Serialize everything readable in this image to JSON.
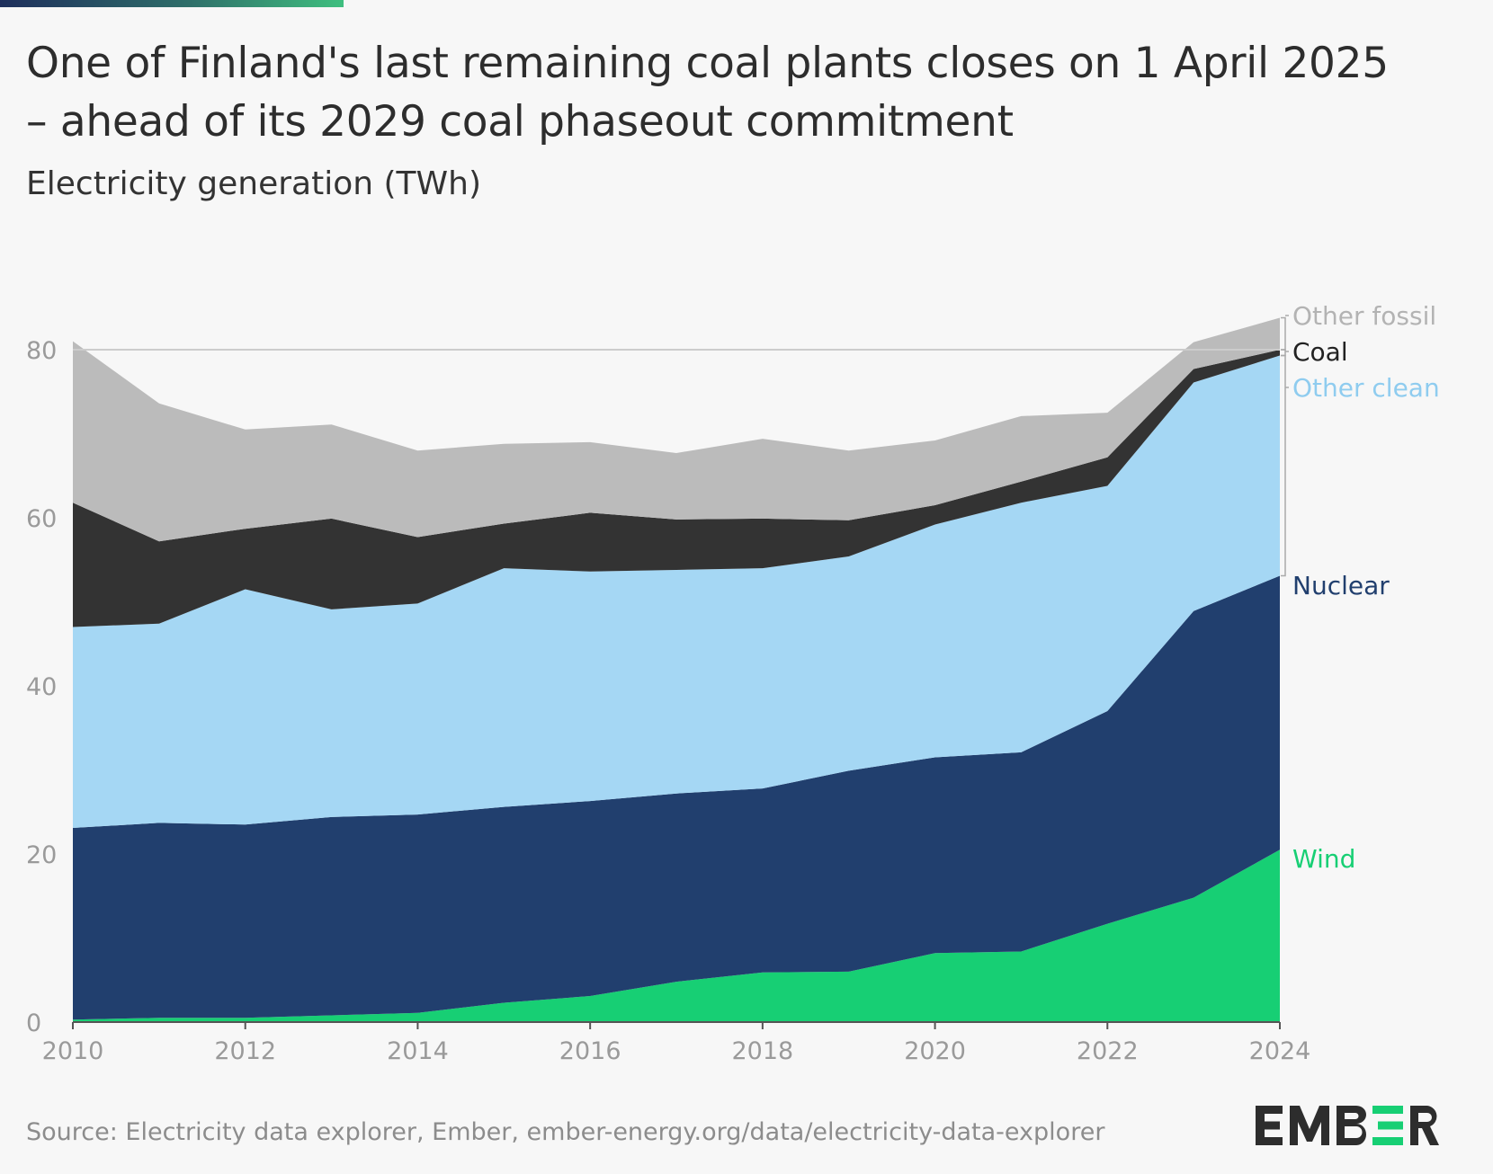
{
  "header": {
    "title_line1": "One of Finland's last remaining coal plants closes on 1 April 2025",
    "title_line2": "– ahead of its 2029 coal phaseout commitment",
    "subtitle": "Electricity generation (TWh)"
  },
  "footer": {
    "source": "Source: Electricity data explorer, Ember, ember-energy.org/data/electricity-data-explorer",
    "logo_text": "EMBER"
  },
  "colors": {
    "wind": "#17cf74",
    "nuclear": "#213f6e",
    "other_clean": "#a5d7f4",
    "coal": "#333333",
    "other_fossil": "#bbbbbb",
    "label_other_fossil": "#b3b3b3",
    "label_other_clean": "#8fccef",
    "axis_text": "#9a9a9a"
  },
  "chart_data": {
    "type": "area",
    "stacked": true,
    "x": [
      2010,
      2011,
      2012,
      2013,
      2014,
      2015,
      2016,
      2017,
      2018,
      2019,
      2020,
      2021,
      2022,
      2023,
      2024
    ],
    "ylim": [
      0,
      90
    ],
    "yticks": [
      0,
      20,
      40,
      60,
      80
    ],
    "xticks": [
      2010,
      2012,
      2014,
      2016,
      2018,
      2020,
      2022,
      2024
    ],
    "gridlines": [
      80
    ],
    "series": [
      {
        "name": "Wind",
        "key": "wind",
        "values": [
          0.3,
          0.5,
          0.5,
          0.8,
          1.1,
          2.3,
          3.1,
          4.8,
          5.9,
          6.0,
          8.2,
          8.4,
          11.7,
          14.8,
          20.5
        ]
      },
      {
        "name": "Nuclear",
        "key": "nuclear",
        "values": [
          22.8,
          23.2,
          23.0,
          23.6,
          23.6,
          23.3,
          23.2,
          22.4,
          21.9,
          23.9,
          23.3,
          23.7,
          25.3,
          34.1,
          32.6
        ]
      },
      {
        "name": "Other clean",
        "key": "other_clean",
        "values": [
          23.9,
          23.7,
          28.0,
          24.7,
          25.1,
          28.4,
          27.3,
          26.6,
          26.2,
          25.5,
          27.7,
          29.7,
          26.8,
          27.2,
          26.2
        ]
      },
      {
        "name": "Coal",
        "key": "coal",
        "values": [
          14.8,
          9.8,
          7.2,
          10.8,
          7.9,
          5.3,
          7.0,
          6.0,
          5.9,
          4.3,
          2.3,
          2.5,
          3.4,
          1.6,
          0.7
        ]
      },
      {
        "name": "Other fossil",
        "key": "other_fossil",
        "values": [
          19.2,
          16.4,
          11.8,
          11.2,
          10.3,
          9.5,
          8.4,
          7.9,
          9.5,
          8.3,
          7.7,
          7.8,
          5.3,
          3.2,
          3.8
        ]
      }
    ]
  }
}
